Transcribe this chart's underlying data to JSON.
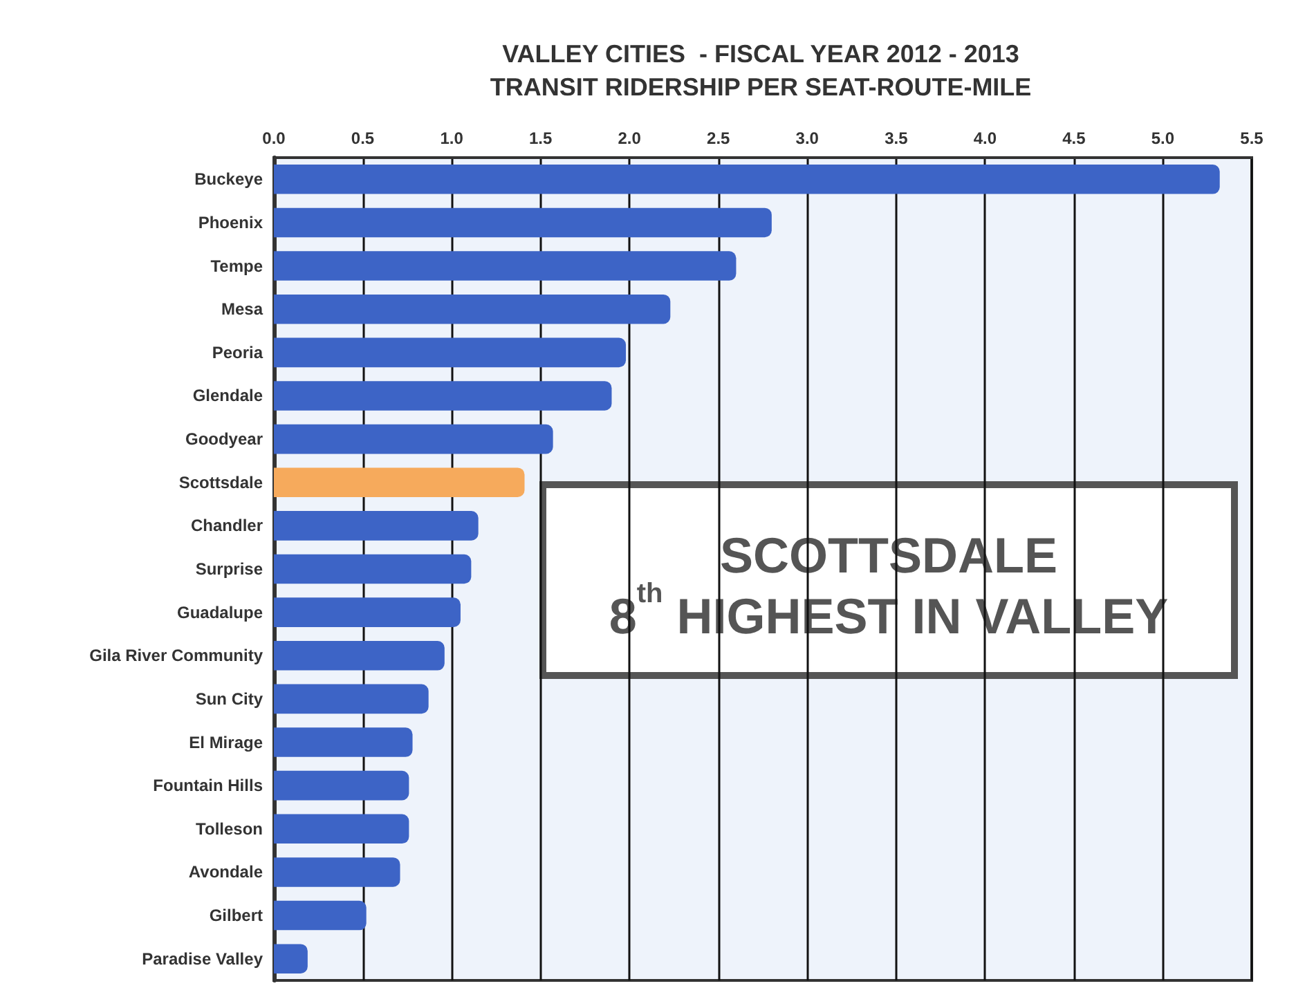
{
  "chart_data": {
    "type": "bar",
    "orientation": "horizontal",
    "title": "VALLEY CITIES  - FISCAL YEAR 2012 - 2013\nTRANSIT RIDERSHIP PER SEAT-ROUTE-MILE",
    "categories": [
      "Buckeye",
      "Phoenix",
      "Tempe",
      "Mesa",
      "Peoria",
      "Glendale",
      "Goodyear",
      "Scottsdale",
      "Chandler",
      "Surprise",
      "Guadalupe",
      "Gila River Community",
      "Sun City",
      "El Mirage",
      "Fountain Hills",
      "Tolleson",
      "Avondale",
      "Gilbert",
      "Paradise Valley"
    ],
    "values": [
      5.32,
      2.8,
      2.6,
      2.23,
      1.98,
      1.9,
      1.57,
      1.41,
      1.15,
      1.11,
      1.05,
      0.96,
      0.87,
      0.78,
      0.76,
      0.76,
      0.71,
      0.52,
      0.19
    ],
    "colors": [
      "#3d64c6",
      "#3d64c6",
      "#3d64c6",
      "#3d64c6",
      "#3d64c6",
      "#3d64c6",
      "#3d64c6",
      "#f6aa5c",
      "#3d64c6",
      "#3d64c6",
      "#3d64c6",
      "#3d64c6",
      "#3d64c6",
      "#3d64c6",
      "#3d64c6",
      "#3d64c6",
      "#3d64c6",
      "#3d64c6",
      "#3d64c6"
    ],
    "xlim": [
      0,
      5.5
    ],
    "xticks": [
      {
        "value": 0,
        "label": "0.0"
      },
      {
        "value": 0.5,
        "label": "0.5"
      },
      {
        "value": 1,
        "label": "1.0"
      },
      {
        "value": 1.5,
        "label": "1.5"
      },
      {
        "value": 2,
        "label": "2.0"
      },
      {
        "value": 2.5,
        "label": "2.5"
      },
      {
        "value": 3,
        "label": "3.0"
      },
      {
        "value": 3.5,
        "label": "3.5"
      },
      {
        "value": 4,
        "label": "4.0"
      },
      {
        "value": 4.5,
        "label": "4.5"
      },
      {
        "value": 5,
        "label": "5.0"
      },
      {
        "value": 5.5,
        "label": "5.5"
      }
    ],
    "grid": "x",
    "annotations": [
      "SCOTTSDALE\n8$^{th}$ HIGHEST IN VALLEY"
    ]
  }
}
